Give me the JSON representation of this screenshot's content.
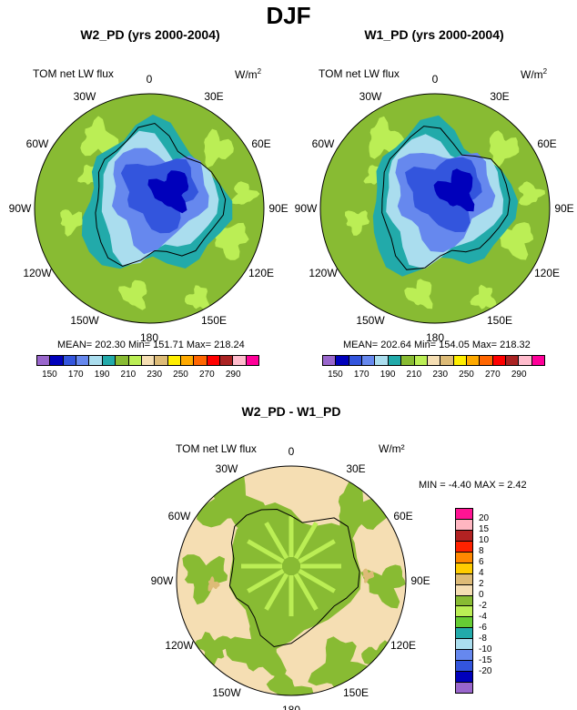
{
  "title": "DJF",
  "panels": [
    {
      "id": "w2",
      "title": "W2_PD (yrs 2000-2004)",
      "left_label": "TOM net LW flux",
      "units_main": "W/m",
      "units_sup": "2",
      "stats": "MEAN= 202.30  Min= 151.71  Max= 218.24"
    },
    {
      "id": "w1",
      "title": "W1_PD (yrs 2000-2004)",
      "left_label": "TOM net LW flux",
      "units_main": "W/m",
      "units_sup": "2",
      "stats": "MEAN= 202.64  Min= 154.05  Max= 218.32"
    }
  ],
  "diff_panel": {
    "title": "W2_PD - W1_PD",
    "left_label": "TOM net LW flux",
    "units": "W/m²",
    "stats": "MIN =  -4.40 MAX =   2.42"
  },
  "longitude_labels": [
    "0",
    "30E",
    "60E",
    "90E",
    "120E",
    "150E",
    "180",
    "150W",
    "120W",
    "90W",
    "60W",
    "30W"
  ],
  "colorbar_abs": {
    "colors": [
      "#9966cc",
      "#0000bb",
      "#3355dd",
      "#6688ee",
      "#aaddee",
      "#22aaaa",
      "#88bb33",
      "#bbee55",
      "#f5deb3",
      "#ddbb77",
      "#ffee00",
      "#ffaa00",
      "#ff6600",
      "#ff0000",
      "#aa2222",
      "#ffbbcc",
      "#ff0099"
    ],
    "tick_labels": [
      "150",
      "170",
      "190",
      "210",
      "230",
      "250",
      "270",
      "290"
    ]
  },
  "colorbar_diff": {
    "colors": [
      "#ff1493",
      "#ffb6c1",
      "#b22222",
      "#ff2200",
      "#ff8800",
      "#ffcc00",
      "#ddbb77",
      "#f5deb3",
      "#88bb33",
      "#bbee55",
      "#66cc33",
      "#22aaaa",
      "#aaddee",
      "#6688ee",
      "#3355dd",
      "#0000bb",
      "#9966cc"
    ],
    "tick_labels": [
      "20",
      "15",
      "10",
      "8",
      "6",
      "4",
      "2",
      "0",
      "-2",
      "-4",
      "-6",
      "-8",
      "-10",
      "-15",
      "-20"
    ]
  },
  "map_colors": {
    "ocean_abs": "#88bb33",
    "ocean_light": "#bbee55",
    "teal": "#22aaaa",
    "lightblue": "#aaddee",
    "midblue": "#6688ee",
    "blue": "#3355dd",
    "darkblue": "#0000bb",
    "diff_ocean": "#f5deb3",
    "diff_green": "#88bb33",
    "diff_light": "#bbee55",
    "diff_tan": "#ddbb77"
  }
}
